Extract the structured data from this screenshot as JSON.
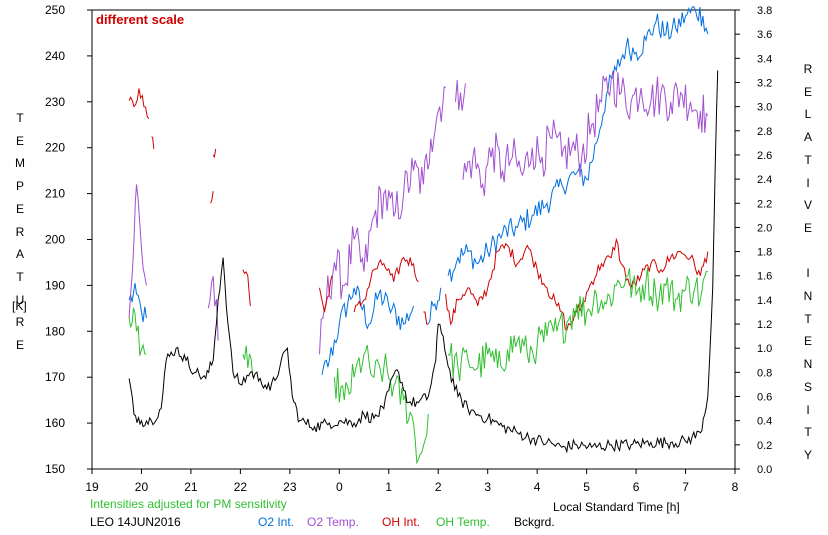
{
  "chart_data": {
    "type": "line",
    "title": "",
    "annotation_top": "different scale",
    "annotation_bottom": "Intensities adjusted for PM sensitivity",
    "station_date": "LEO 14JUN2016",
    "xlabel": "Local Standard Time [h]",
    "ylabel_left": "TEMPERATURE",
    "ylabel_left_unit": "[K]",
    "ylabel_right": "RELATIVE INTENSITY",
    "x_ticks": [
      {
        "hour": 19,
        "label": "19"
      },
      {
        "hour": 20,
        "label": "20"
      },
      {
        "hour": 21,
        "label": "21"
      },
      {
        "hour": 22,
        "label": "22"
      },
      {
        "hour": 23,
        "label": "23"
      },
      {
        "hour": 24,
        "label": "0"
      },
      {
        "hour": 25,
        "label": "1"
      },
      {
        "hour": 26,
        "label": "2"
      },
      {
        "hour": 27,
        "label": "3"
      },
      {
        "hour": 28,
        "label": "4"
      },
      {
        "hour": 29,
        "label": "5"
      },
      {
        "hour": 30,
        "label": "6"
      },
      {
        "hour": 31,
        "label": "7"
      },
      {
        "hour": 32,
        "label": "8"
      }
    ],
    "xlim": [
      19,
      32
    ],
    "ylim_left": [
      150,
      250
    ],
    "yticks_left": [
      "150",
      "160",
      "170",
      "180",
      "190",
      "200",
      "210",
      "220",
      "230",
      "240",
      "250"
    ],
    "ylim_right": [
      0.0,
      3.8
    ],
    "yticks_right": [
      "0.0",
      "0.2",
      "0.4",
      "0.6",
      "0.8",
      "1.0",
      "1.2",
      "1.4",
      "1.6",
      "1.8",
      "2.0",
      "2.2",
      "2.4",
      "2.6",
      "2.8",
      "3.0",
      "3.2",
      "3.4",
      "3.6",
      "3.8"
    ],
    "series": [
      {
        "name": "O2 Int.",
        "color": "#0070e0",
        "axis": "right",
        "noise": 0.1,
        "points": [
          [
            19.75,
            1.4
          ],
          [
            19.9,
            1.45
          ],
          [
            20.0,
            1.3
          ],
          [
            20.1,
            1.25
          ],
          null,
          [
            23.65,
            0.78
          ],
          [
            23.8,
            0.9
          ],
          [
            24.0,
            1.2
          ],
          [
            24.3,
            1.5
          ],
          [
            24.6,
            1.2
          ],
          [
            24.8,
            1.45
          ],
          [
            25.0,
            1.35
          ],
          [
            25.3,
            1.2
          ],
          [
            25.5,
            1.35
          ],
          null,
          [
            25.8,
            1.2
          ],
          [
            25.9,
            1.35
          ],
          [
            26.05,
            1.5
          ],
          null,
          [
            26.2,
            1.6
          ],
          [
            26.4,
            1.75
          ],
          [
            26.6,
            1.8
          ],
          [
            26.8,
            1.7
          ],
          [
            27.0,
            1.8
          ],
          [
            27.3,
            1.95
          ],
          [
            27.6,
            2.0
          ],
          [
            27.9,
            2.1
          ],
          [
            28.2,
            2.2
          ],
          [
            28.5,
            2.35
          ],
          [
            28.8,
            2.45
          ],
          [
            29.0,
            2.4
          ],
          [
            29.2,
            2.7
          ],
          [
            29.4,
            3.1
          ],
          [
            29.6,
            3.3
          ],
          [
            29.8,
            3.5
          ],
          [
            30.0,
            3.45
          ],
          [
            30.2,
            3.55
          ],
          [
            30.4,
            3.7
          ],
          [
            30.6,
            3.6
          ],
          [
            30.8,
            3.65
          ],
          [
            31.0,
            3.75
          ],
          [
            31.2,
            3.8
          ],
          [
            31.35,
            3.75
          ],
          [
            31.45,
            3.6
          ]
        ]
      },
      {
        "name": "O2 Temp.",
        "color": "#a050d0",
        "axis": "left",
        "noise": 5,
        "points": [
          [
            19.75,
            183
          ],
          [
            19.85,
            200
          ],
          [
            19.9,
            212
          ],
          [
            20.0,
            198
          ],
          [
            20.1,
            190
          ],
          null,
          [
            21.35,
            185
          ],
          [
            21.45,
            192
          ],
          [
            21.55,
            178
          ],
          null,
          [
            23.6,
            175
          ],
          [
            23.7,
            185
          ],
          [
            23.9,
            195
          ],
          [
            24.1,
            190
          ],
          [
            24.3,
            200
          ],
          [
            24.5,
            193
          ],
          [
            24.7,
            205
          ],
          [
            24.9,
            210
          ],
          [
            25.1,
            205
          ],
          [
            25.3,
            210
          ],
          [
            25.5,
            215
          ],
          [
            25.7,
            212
          ],
          [
            25.85,
            222
          ],
          [
            26.0,
            228
          ],
          [
            26.15,
            233
          ],
          null,
          [
            26.35,
            230
          ],
          [
            26.45,
            232
          ],
          [
            26.55,
            234
          ],
          null,
          [
            26.5,
            213
          ],
          [
            26.7,
            218
          ],
          [
            26.9,
            212
          ],
          [
            27.1,
            220
          ],
          [
            27.3,
            215
          ],
          [
            27.5,
            218
          ],
          [
            27.7,
            214
          ],
          [
            27.9,
            220
          ],
          [
            28.1,
            218
          ],
          [
            28.3,
            222
          ],
          [
            28.5,
            218
          ],
          [
            28.7,
            220
          ],
          [
            28.9,
            218
          ],
          [
            29.1,
            225
          ],
          [
            29.3,
            230
          ],
          [
            29.5,
            235
          ],
          [
            29.7,
            232
          ],
          [
            29.9,
            230
          ],
          [
            30.1,
            233
          ],
          [
            30.3,
            230
          ],
          [
            30.5,
            232
          ],
          [
            30.7,
            230
          ],
          [
            30.9,
            232
          ],
          [
            31.1,
            230
          ],
          [
            31.3,
            228
          ],
          [
            31.45,
            227
          ]
        ]
      },
      {
        "name": "OH Int.",
        "color": "#d00000",
        "axis": "right",
        "noise": 0.05,
        "points": [
          [
            19.75,
            3.05
          ],
          [
            19.85,
            3.0
          ],
          [
            19.95,
            3.15
          ],
          [
            20.05,
            3.0
          ],
          [
            20.15,
            2.9
          ],
          null,
          [
            20.2,
            2.75
          ],
          [
            20.25,
            2.65
          ],
          null,
          [
            21.4,
            2.2
          ],
          [
            21.45,
            2.3
          ],
          null,
          [
            21.45,
            2.6
          ],
          [
            21.5,
            2.65
          ],
          null,
          [
            22.05,
            1.65
          ],
          [
            22.15,
            1.6
          ],
          [
            22.2,
            1.35
          ],
          null,
          [
            23.6,
            1.5
          ],
          [
            23.7,
            1.3
          ],
          [
            23.85,
            1.6
          ],
          null,
          [
            24.3,
            1.3
          ],
          [
            24.5,
            1.4
          ],
          [
            24.7,
            1.65
          ],
          [
            24.9,
            1.7
          ],
          [
            25.1,
            1.55
          ],
          [
            25.3,
            1.75
          ],
          [
            25.5,
            1.7
          ],
          [
            25.6,
            1.55
          ],
          null,
          [
            25.7,
            1.3
          ],
          [
            25.8,
            1.2
          ],
          null,
          [
            26.15,
            1.45
          ],
          [
            26.25,
            1.2
          ],
          [
            26.4,
            1.4
          ],
          [
            26.6,
            1.5
          ],
          [
            26.8,
            1.35
          ],
          [
            27.0,
            1.5
          ],
          [
            27.2,
            1.8
          ],
          [
            27.4,
            1.85
          ],
          [
            27.6,
            1.7
          ],
          [
            27.8,
            1.85
          ],
          [
            28.0,
            1.65
          ],
          [
            28.2,
            1.5
          ],
          [
            28.4,
            1.35
          ],
          [
            28.5,
            1.3
          ],
          [
            28.6,
            1.15
          ],
          [
            28.8,
            1.3
          ],
          [
            28.9,
            1.35
          ],
          [
            29.1,
            1.55
          ],
          [
            29.3,
            1.7
          ],
          [
            29.5,
            1.75
          ],
          [
            29.6,
            1.9
          ],
          [
            29.7,
            1.7
          ],
          [
            29.9,
            1.5
          ],
          [
            30.1,
            1.6
          ],
          [
            30.3,
            1.7
          ],
          [
            30.5,
            1.65
          ],
          [
            30.7,
            1.75
          ],
          [
            30.9,
            1.8
          ],
          [
            31.1,
            1.75
          ],
          [
            31.3,
            1.6
          ],
          [
            31.45,
            1.8
          ]
        ]
      },
      {
        "name": "OH Temp.",
        "color": "#30c030",
        "axis": "left",
        "noise": 4,
        "points": [
          [
            19.75,
            183
          ],
          [
            19.9,
            180
          ],
          [
            20.0,
            176
          ],
          [
            20.1,
            175
          ],
          null,
          [
            22.05,
            175
          ],
          [
            22.15,
            172
          ],
          [
            22.25,
            170
          ],
          null,
          [
            23.9,
            170
          ],
          [
            24.1,
            165
          ],
          [
            24.3,
            170
          ],
          [
            24.5,
            175
          ],
          [
            24.7,
            170
          ],
          [
            24.9,
            172
          ],
          [
            25.1,
            168
          ],
          [
            25.3,
            165
          ],
          [
            25.5,
            160
          ],
          [
            25.6,
            152
          ],
          [
            25.7,
            155
          ],
          [
            25.8,
            162
          ],
          null,
          [
            26.2,
            175
          ],
          [
            26.4,
            172
          ],
          [
            26.6,
            174
          ],
          [
            26.8,
            172
          ],
          [
            27.0,
            175
          ],
          [
            27.2,
            172
          ],
          [
            27.4,
            176
          ],
          [
            27.6,
            178
          ],
          [
            27.8,
            175
          ],
          [
            28.0,
            177
          ],
          [
            28.2,
            179
          ],
          [
            28.4,
            180
          ],
          [
            28.6,
            182
          ],
          [
            28.8,
            186
          ],
          [
            29.0,
            184
          ],
          [
            29.2,
            188
          ],
          [
            29.4,
            186
          ],
          [
            29.6,
            190
          ],
          [
            29.8,
            192
          ],
          [
            30.0,
            188
          ],
          [
            30.2,
            191
          ],
          [
            30.4,
            188
          ],
          [
            30.6,
            190
          ],
          [
            30.8,
            187
          ],
          [
            31.0,
            189
          ],
          [
            31.2,
            190
          ],
          [
            31.3,
            187
          ],
          [
            31.45,
            193
          ]
        ]
      },
      {
        "name": "Bckgrd.",
        "color": "#000000",
        "axis": "right",
        "noise": 0.05,
        "points": [
          [
            19.75,
            0.75
          ],
          [
            19.85,
            0.45
          ],
          [
            20.0,
            0.4
          ],
          [
            20.2,
            0.4
          ],
          [
            20.4,
            0.5
          ],
          [
            20.5,
            0.9
          ],
          [
            20.7,
            1.0
          ],
          [
            20.9,
            0.9
          ],
          [
            21.1,
            0.8
          ],
          [
            21.3,
            0.75
          ],
          [
            21.45,
            0.9
          ],
          [
            21.55,
            1.4
          ],
          [
            21.65,
            1.75
          ],
          [
            21.75,
            1.2
          ],
          [
            21.85,
            0.8
          ],
          [
            22.0,
            0.7
          ],
          [
            22.2,
            0.8
          ],
          [
            22.4,
            0.75
          ],
          [
            22.6,
            0.65
          ],
          [
            22.8,
            0.85
          ],
          [
            22.95,
            1.0
          ],
          [
            23.05,
            0.6
          ],
          [
            23.2,
            0.4
          ],
          [
            23.5,
            0.35
          ],
          [
            23.8,
            0.38
          ],
          [
            24.0,
            0.4
          ],
          [
            24.3,
            0.38
          ],
          [
            24.5,
            0.45
          ],
          [
            24.7,
            0.42
          ],
          [
            24.9,
            0.5
          ],
          [
            25.1,
            0.78
          ],
          [
            25.2,
            0.8
          ],
          [
            25.4,
            0.55
          ],
          [
            25.6,
            0.55
          ],
          [
            25.8,
            0.6
          ],
          [
            25.95,
            0.9
          ],
          [
            26.0,
            1.2
          ],
          [
            26.1,
            1.1
          ],
          [
            26.2,
            0.85
          ],
          [
            26.4,
            0.6
          ],
          [
            26.6,
            0.5
          ],
          [
            26.8,
            0.45
          ],
          [
            27.0,
            0.42
          ],
          [
            27.3,
            0.35
          ],
          [
            27.6,
            0.3
          ],
          [
            27.9,
            0.25
          ],
          [
            28.2,
            0.22
          ],
          [
            28.5,
            0.18
          ],
          [
            28.8,
            0.2
          ],
          [
            29.1,
            0.18
          ],
          [
            29.5,
            0.2
          ],
          [
            29.9,
            0.2
          ],
          [
            30.3,
            0.22
          ],
          [
            30.7,
            0.22
          ],
          [
            31.0,
            0.23
          ],
          [
            31.3,
            0.3
          ],
          [
            31.45,
            0.6
          ],
          [
            31.55,
            1.5
          ],
          [
            31.6,
            2.5
          ],
          [
            31.65,
            3.3
          ]
        ]
      }
    ]
  }
}
